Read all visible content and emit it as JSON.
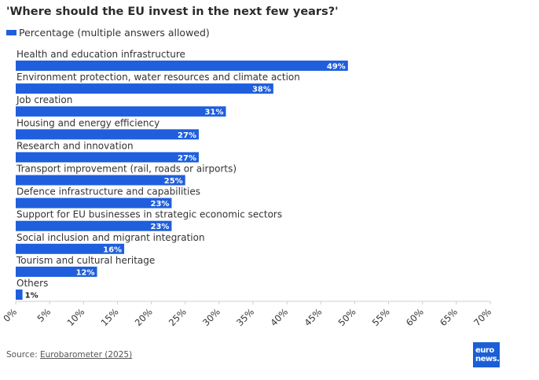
{
  "title": "'Where should the EU invest in the next few years?'",
  "legend_label": "Percentage (multiple answers allowed)",
  "source_prefix": "Source: ",
  "source_link": "Eurobarometer (2025)",
  "logo_top": "euro",
  "logo_bottom": "news.",
  "colors": {
    "bar": "#1f5fdd",
    "axis": "#cfcfcf",
    "text": "#333333",
    "label": "#ffffff",
    "outside_label": "#222222"
  },
  "chart_data": {
    "type": "bar",
    "orientation": "horizontal",
    "categories": [
      "Health and education infrastructure",
      "Environment protection, water resources and climate action",
      "Job creation",
      "Housing and energy efficiency",
      "Research and innovation",
      "Transport improvement (rail, roads or airports)",
      "Defence infrastructure and capabilities",
      "Support for EU businesses in strategic economic sectors",
      "Social inclusion and migrant integration",
      "Tourism and cultural heritage",
      "Others"
    ],
    "series": [
      {
        "name": "Percentage (multiple answers allowed)",
        "values": [
          49,
          38,
          31,
          27,
          27,
          25,
          23,
          23,
          16,
          12,
          1
        ]
      }
    ],
    "value_labels": [
      "49%",
      "38%",
      "31%",
      "27%",
      "27%",
      "25%",
      "23%",
      "23%",
      "16%",
      "12%",
      "1%"
    ],
    "xlim": [
      0,
      70
    ],
    "xticks": [
      "0%",
      "5%",
      "10%",
      "15%",
      "20%",
      "25%",
      "30%",
      "35%",
      "40%",
      "45%",
      "50%",
      "55%",
      "60%",
      "65%",
      "70%"
    ],
    "grid": false,
    "legend_position": "top-left"
  }
}
